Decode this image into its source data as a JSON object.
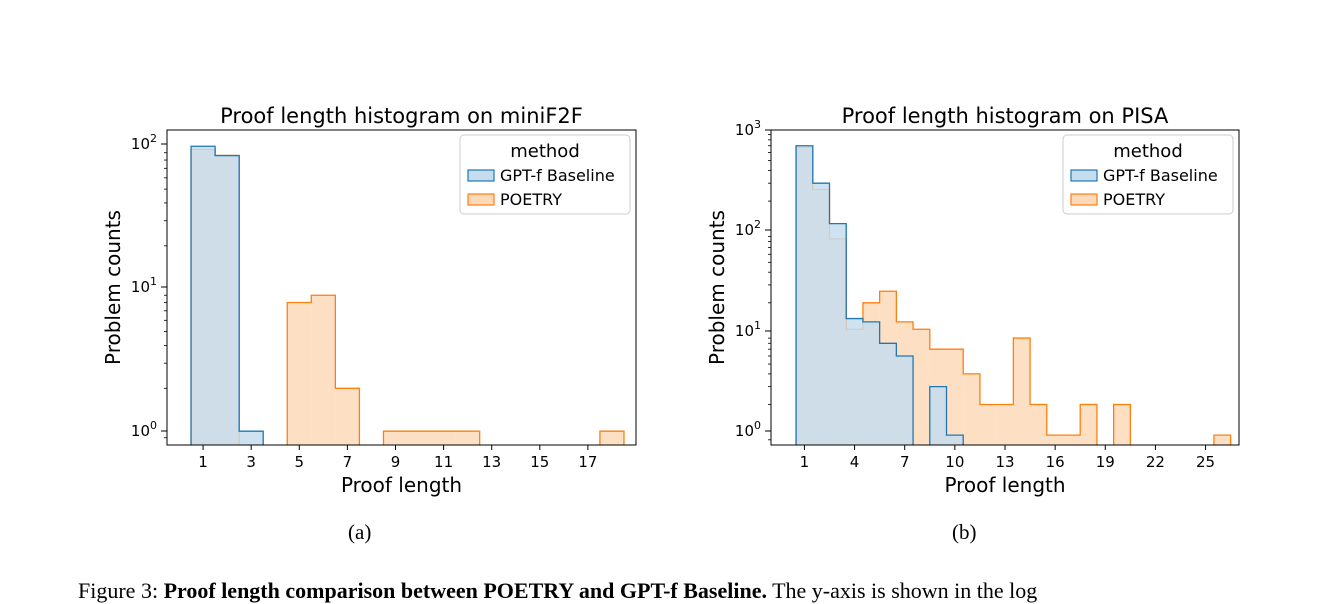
{
  "chart_data": [
    {
      "type": "histogram",
      "title": "Proof length histogram on miniF2F",
      "xlabel": "Proof length",
      "ylabel": "Problem counts",
      "yscale": "log",
      "ylim": [
        0.8,
        130
      ],
      "xlim": [
        -0.5,
        19
      ],
      "ytick_labels": [
        "10^0",
        "10^1",
        "10^2"
      ],
      "xticks": [
        1,
        3,
        5,
        7,
        9,
        11,
        13,
        15,
        17
      ],
      "legend": {
        "title": "method",
        "position": "top-right"
      },
      "series": [
        {
          "name": "GPT-f Baseline",
          "color": "#1f77b4",
          "fill": "#c5ddef",
          "bins": [
            {
              "x": 1,
              "y": 100
            },
            {
              "x": 2,
              "y": 86
            },
            {
              "x": 3,
              "y": 1
            }
          ]
        },
        {
          "name": "POETRY",
          "color": "#ff7f0e",
          "fill": "#fdd9b9",
          "bins": [
            {
              "x": 1,
              "y": 95
            },
            {
              "x": 2,
              "y": 86
            },
            {
              "x": 5,
              "y": 8
            },
            {
              "x": 6,
              "y": 9
            },
            {
              "x": 7,
              "y": 2
            },
            {
              "x": 9,
              "y": 1
            },
            {
              "x": 10,
              "y": 1
            },
            {
              "x": 11,
              "y": 1
            },
            {
              "x": 12,
              "y": 1
            },
            {
              "x": 18,
              "y": 1
            }
          ]
        }
      ]
    },
    {
      "type": "histogram",
      "title": "Proof length histogram on PISA",
      "xlabel": "Proof length",
      "ylabel": "Problem counts",
      "yscale": "log",
      "ylim": [
        0.8,
        1000
      ],
      "xlim": [
        -1,
        27
      ],
      "ytick_labels": [
        "10^0",
        "10^1",
        "10^2",
        "10^3"
      ],
      "xticks": [
        1,
        4,
        7,
        10,
        13,
        16,
        19,
        22,
        25
      ],
      "legend": {
        "title": "method",
        "position": "top-right"
      },
      "series": [
        {
          "name": "GPT-f Baseline",
          "color": "#1f77b4",
          "fill": "#c5ddef",
          "bins": [
            {
              "x": 1,
              "y": 700
            },
            {
              "x": 2,
              "y": 300
            },
            {
              "x": 3,
              "y": 120
            },
            {
              "x": 4,
              "y": 14
            },
            {
              "x": 5,
              "y": 13
            },
            {
              "x": 6,
              "y": 8
            },
            {
              "x": 7,
              "y": 6
            },
            {
              "x": 9,
              "y": 3
            },
            {
              "x": 10,
              "y": 1
            }
          ]
        },
        {
          "name": "POETRY",
          "color": "#ff7f0e",
          "fill": "#fdd9b9",
          "bins": [
            {
              "x": 1,
              "y": 680
            },
            {
              "x": 2,
              "y": 260
            },
            {
              "x": 3,
              "y": 85
            },
            {
              "x": 4,
              "y": 11
            },
            {
              "x": 5,
              "y": 20
            },
            {
              "x": 6,
              "y": 26
            },
            {
              "x": 7,
              "y": 13
            },
            {
              "x": 8,
              "y": 11
            },
            {
              "x": 9,
              "y": 7
            },
            {
              "x": 10,
              "y": 7
            },
            {
              "x": 11,
              "y": 4
            },
            {
              "x": 12,
              "y": 2
            },
            {
              "x": 13,
              "y": 2
            },
            {
              "x": 14,
              "y": 9
            },
            {
              "x": 15,
              "y": 2
            },
            {
              "x": 16,
              "y": 1
            },
            {
              "x": 17,
              "y": 1
            },
            {
              "x": 18,
              "y": 2
            },
            {
              "x": 20,
              "y": 2
            },
            {
              "x": 26,
              "y": 1
            }
          ]
        }
      ]
    }
  ],
  "subfigure_labels": [
    "(a)",
    "(b)"
  ],
  "caption": {
    "prefix": "Figure 3: ",
    "bold": "Proof length comparison between POETRY and GPT-f Baseline.",
    "rest": " The y-axis is shown in the log"
  }
}
